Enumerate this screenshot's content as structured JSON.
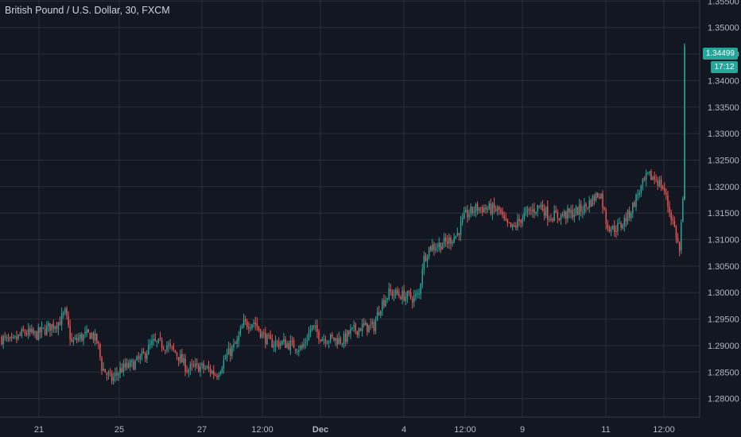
{
  "symbol": {
    "title": "British Pound / U.S. Dollar, 30, FXCM"
  },
  "price_label": {
    "last_price": "1.34499",
    "countdown": "17:12"
  },
  "colors": {
    "background": "#131722",
    "grid": "#2a2e39",
    "up": "#26a69a",
    "down": "#ef5350",
    "axis_text": "#b2b5be"
  },
  "chart_data": {
    "type": "candlestick",
    "title": "British Pound / U.S. Dollar, 30, FXCM",
    "ylim": [
      1.2765,
      1.3552
    ],
    "y_ticks": [
      "1.28000",
      "1.28500",
      "1.29000",
      "1.29500",
      "1.30000",
      "1.30500",
      "1.31000",
      "1.31500",
      "1.32000",
      "1.32500",
      "1.33000",
      "1.33500",
      "1.34000",
      "1.34500",
      "1.35000",
      "1.35500"
    ],
    "x_ticks": [
      "21",
      "25",
      "27",
      "12:00",
      "Dec",
      "4",
      "12:00",
      "9",
      "11",
      "12:00"
    ],
    "grid": true,
    "last_price": 1.34499,
    "path": [
      [
        0,
        1.2915
      ],
      [
        15,
        1.2905
      ],
      [
        30,
        1.2925
      ],
      [
        45,
        1.292
      ],
      [
        62,
        1.2935
      ],
      [
        75,
        1.2945
      ],
      [
        82,
        1.2962
      ],
      [
        90,
        1.2905
      ],
      [
        100,
        1.2915
      ],
      [
        115,
        1.2922
      ],
      [
        123,
        1.2905
      ],
      [
        128,
        1.286
      ],
      [
        140,
        1.2835
      ],
      [
        152,
        1.2855
      ],
      [
        168,
        1.2865
      ],
      [
        180,
        1.288
      ],
      [
        192,
        1.2905
      ],
      [
        210,
        1.29
      ],
      [
        222,
        1.2885
      ],
      [
        236,
        1.2855
      ],
      [
        250,
        1.286
      ],
      [
        262,
        1.2855
      ],
      [
        272,
        1.2845
      ],
      [
        285,
        1.288
      ],
      [
        298,
        1.2905
      ],
      [
        306,
        1.294
      ],
      [
        320,
        1.2945
      ],
      [
        330,
        1.292
      ],
      [
        340,
        1.2905
      ],
      [
        355,
        1.2905
      ],
      [
        370,
        1.29
      ],
      [
        380,
        1.2895
      ],
      [
        392,
        1.2935
      ],
      [
        405,
        1.2915
      ],
      [
        420,
        1.2912
      ],
      [
        432,
        1.291
      ],
      [
        440,
        1.2925
      ],
      [
        455,
        1.2935
      ],
      [
        470,
        1.2935
      ],
      [
        478,
        1.2975
      ],
      [
        490,
        1.3
      ],
      [
        505,
        1.2995
      ],
      [
        520,
        1.299
      ],
      [
        527,
        1.2995
      ],
      [
        532,
        1.306
      ],
      [
        540,
        1.3085
      ],
      [
        552,
        1.309
      ],
      [
        562,
        1.3095
      ],
      [
        575,
        1.311
      ],
      [
        585,
        1.3145
      ],
      [
        600,
        1.316
      ],
      [
        615,
        1.3158
      ],
      [
        628,
        1.3155
      ],
      [
        635,
        1.313
      ],
      [
        645,
        1.312
      ],
      [
        658,
        1.3145
      ],
      [
        670,
        1.3155
      ],
      [
        680,
        1.3165
      ],
      [
        690,
        1.3145
      ],
      [
        705,
        1.3145
      ],
      [
        720,
        1.315
      ],
      [
        735,
        1.316
      ],
      [
        748,
        1.318
      ],
      [
        755,
        1.319
      ],
      [
        763,
        1.313
      ],
      [
        770,
        1.312
      ],
      [
        780,
        1.3125
      ],
      [
        792,
        1.315
      ],
      [
        805,
        1.3195
      ],
      [
        815,
        1.322
      ],
      [
        825,
        1.3215
      ],
      [
        835,
        1.3195
      ],
      [
        840,
        1.3165
      ],
      [
        848,
        1.3125
      ],
      [
        855,
        1.3075
      ],
      [
        858,
        1.3165
      ],
      [
        860,
        1.3175
      ]
    ],
    "final_spike": {
      "from": 1.3175,
      "to": 1.347
    }
  }
}
